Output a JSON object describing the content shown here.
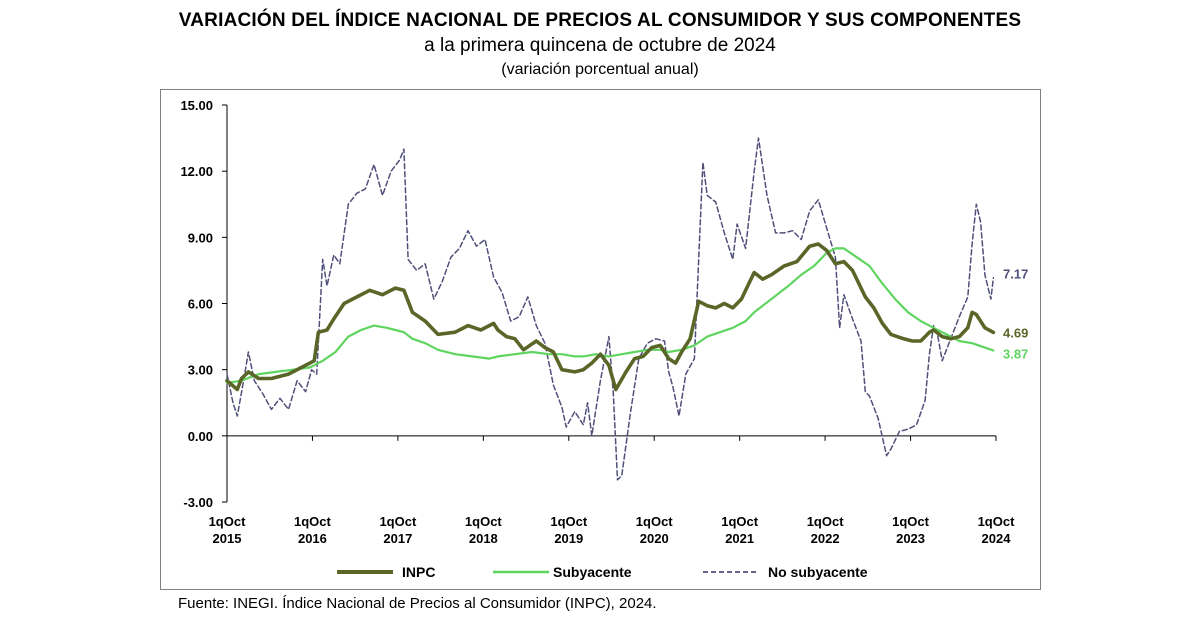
{
  "header": {
    "title": "VARIACIÓN DEL ÍNDICE NACIONAL DE PRECIOS AL CONSUMIDOR Y SUS COMPONENTES",
    "subtitle": "a la primera quincena de octubre de 2024",
    "unit_note": "(variación porcentual anual)"
  },
  "footer": {
    "source": "Fuente: INEGI. Índice Nacional de Precios al Consumidor (INPC), 2024."
  },
  "colors": {
    "inpc": "#5a6628",
    "subyacente": "#5fd45f",
    "no_subyacente": "#50507a",
    "axis": "#000000"
  },
  "chart_data": {
    "type": "line",
    "ylim": [
      -3,
      15
    ],
    "yticks": [
      -3,
      0,
      3,
      6,
      9,
      12,
      15
    ],
    "ytick_labels": [
      "-3.00",
      "0.00",
      "3.00",
      "6.00",
      "9.00",
      "12.00",
      "15.00"
    ],
    "xlim": [
      2015.83,
      2024.83
    ],
    "xticks": [
      {
        "x": 2015.83,
        "line1": "1qOct",
        "line2": "2015"
      },
      {
        "x": 2016.83,
        "line1": "1qOct",
        "line2": "2016"
      },
      {
        "x": 2017.83,
        "line1": "1qOct",
        "line2": "2017"
      },
      {
        "x": 2018.83,
        "line1": "1qOct",
        "line2": "2018"
      },
      {
        "x": 2019.83,
        "line1": "1qOct",
        "line2": "2019"
      },
      {
        "x": 2020.83,
        "line1": "1qOct",
        "line2": "2020"
      },
      {
        "x": 2021.83,
        "line1": "1qOct",
        "line2": "2021"
      },
      {
        "x": 2022.83,
        "line1": "1qOct",
        "line2": "2022"
      },
      {
        "x": 2023.83,
        "line1": "1qOct",
        "line2": "2023"
      },
      {
        "x": 2024.83,
        "line1": "1qOct",
        "line2": "2024"
      }
    ],
    "grid": false,
    "legend": "bottom",
    "series": [
      {
        "name": "INPC",
        "style": "solid-thick",
        "end_label": "4.69",
        "points": [
          [
            2015.83,
            2.5
          ],
          [
            2015.95,
            2.1
          ],
          [
            2016.0,
            2.6
          ],
          [
            2016.08,
            2.9
          ],
          [
            2016.2,
            2.6
          ],
          [
            2016.35,
            2.6
          ],
          [
            2016.55,
            2.8
          ],
          [
            2016.7,
            3.1
          ],
          [
            2016.85,
            3.4
          ],
          [
            2016.9,
            4.7
          ],
          [
            2017.0,
            4.8
          ],
          [
            2017.08,
            5.3
          ],
          [
            2017.2,
            6.0
          ],
          [
            2017.35,
            6.3
          ],
          [
            2017.5,
            6.6
          ],
          [
            2017.65,
            6.4
          ],
          [
            2017.8,
            6.7
          ],
          [
            2017.9,
            6.6
          ],
          [
            2018.0,
            5.6
          ],
          [
            2018.15,
            5.2
          ],
          [
            2018.3,
            4.6
          ],
          [
            2018.5,
            4.7
          ],
          [
            2018.65,
            5.0
          ],
          [
            2018.8,
            4.8
          ],
          [
            2018.95,
            5.1
          ],
          [
            2019.0,
            4.8
          ],
          [
            2019.1,
            4.5
          ],
          [
            2019.2,
            4.4
          ],
          [
            2019.3,
            3.9
          ],
          [
            2019.45,
            4.3
          ],
          [
            2019.55,
            4.0
          ],
          [
            2019.65,
            3.8
          ],
          [
            2019.75,
            3.0
          ],
          [
            2019.9,
            2.9
          ],
          [
            2020.0,
            3.0
          ],
          [
            2020.1,
            3.3
          ],
          [
            2020.2,
            3.7
          ],
          [
            2020.3,
            3.2
          ],
          [
            2020.38,
            2.1
          ],
          [
            2020.5,
            2.9
          ],
          [
            2020.6,
            3.5
          ],
          [
            2020.7,
            3.6
          ],
          [
            2020.8,
            4.0
          ],
          [
            2020.9,
            4.1
          ],
          [
            2021.0,
            3.5
          ],
          [
            2021.08,
            3.3
          ],
          [
            2021.15,
            3.8
          ],
          [
            2021.25,
            4.4
          ],
          [
            2021.35,
            6.1
          ],
          [
            2021.45,
            5.9
          ],
          [
            2021.55,
            5.8
          ],
          [
            2021.65,
            6.0
          ],
          [
            2021.75,
            5.8
          ],
          [
            2021.85,
            6.2
          ],
          [
            2021.95,
            7.0
          ],
          [
            2022.0,
            7.4
          ],
          [
            2022.1,
            7.1
          ],
          [
            2022.2,
            7.3
          ],
          [
            2022.35,
            7.7
          ],
          [
            2022.5,
            7.9
          ],
          [
            2022.65,
            8.6
          ],
          [
            2022.75,
            8.7
          ],
          [
            2022.85,
            8.4
          ],
          [
            2022.95,
            7.8
          ],
          [
            2023.05,
            7.9
          ],
          [
            2023.15,
            7.5
          ],
          [
            2023.3,
            6.3
          ],
          [
            2023.4,
            5.8
          ],
          [
            2023.5,
            5.1
          ],
          [
            2023.6,
            4.6
          ],
          [
            2023.75,
            4.4
          ],
          [
            2023.85,
            4.3
          ],
          [
            2023.95,
            4.3
          ],
          [
            2024.05,
            4.7
          ],
          [
            2024.1,
            4.8
          ],
          [
            2024.2,
            4.5
          ],
          [
            2024.3,
            4.4
          ],
          [
            2024.4,
            4.5
          ],
          [
            2024.5,
            4.9
          ],
          [
            2024.55,
            5.6
          ],
          [
            2024.6,
            5.5
          ],
          [
            2024.7,
            4.9
          ],
          [
            2024.8,
            4.69
          ]
        ]
      },
      {
        "name": "Subyacente",
        "style": "solid",
        "end_label": "3.87",
        "points": [
          [
            2015.83,
            2.4
          ],
          [
            2016.0,
            2.5
          ],
          [
            2016.2,
            2.8
          ],
          [
            2016.4,
            2.9
          ],
          [
            2016.6,
            3.0
          ],
          [
            2016.8,
            3.1
          ],
          [
            2016.95,
            3.4
          ],
          [
            2017.1,
            3.8
          ],
          [
            2017.25,
            4.5
          ],
          [
            2017.4,
            4.8
          ],
          [
            2017.55,
            5.0
          ],
          [
            2017.7,
            4.9
          ],
          [
            2017.8,
            4.8
          ],
          [
            2017.9,
            4.7
          ],
          [
            2018.0,
            4.4
          ],
          [
            2018.15,
            4.2
          ],
          [
            2018.3,
            3.9
          ],
          [
            2018.5,
            3.7
          ],
          [
            2018.7,
            3.6
          ],
          [
            2018.9,
            3.5
          ],
          [
            2019.0,
            3.6
          ],
          [
            2019.2,
            3.7
          ],
          [
            2019.4,
            3.8
          ],
          [
            2019.6,
            3.7
          ],
          [
            2019.75,
            3.7
          ],
          [
            2019.9,
            3.6
          ],
          [
            2020.0,
            3.6
          ],
          [
            2020.15,
            3.7
          ],
          [
            2020.3,
            3.6
          ],
          [
            2020.45,
            3.7
          ],
          [
            2020.6,
            3.8
          ],
          [
            2020.75,
            3.9
          ],
          [
            2020.9,
            3.9
          ],
          [
            2021.0,
            3.8
          ],
          [
            2021.15,
            3.9
          ],
          [
            2021.3,
            4.1
          ],
          [
            2021.45,
            4.5
          ],
          [
            2021.6,
            4.7
          ],
          [
            2021.75,
            4.9
          ],
          [
            2021.9,
            5.2
          ],
          [
            2022.0,
            5.6
          ],
          [
            2022.2,
            6.2
          ],
          [
            2022.4,
            6.8
          ],
          [
            2022.55,
            7.3
          ],
          [
            2022.7,
            7.7
          ],
          [
            2022.85,
            8.3
          ],
          [
            2022.95,
            8.5
          ],
          [
            2023.05,
            8.5
          ],
          [
            2023.2,
            8.1
          ],
          [
            2023.35,
            7.7
          ],
          [
            2023.5,
            6.9
          ],
          [
            2023.65,
            6.2
          ],
          [
            2023.8,
            5.6
          ],
          [
            2023.95,
            5.2
          ],
          [
            2024.1,
            4.9
          ],
          [
            2024.25,
            4.6
          ],
          [
            2024.4,
            4.3
          ],
          [
            2024.55,
            4.2
          ],
          [
            2024.7,
            4.0
          ],
          [
            2024.8,
            3.87
          ]
        ]
      },
      {
        "name": "No subyacente",
        "style": "dashed",
        "end_label": "7.17",
        "points": [
          [
            2015.83,
            2.8
          ],
          [
            2015.9,
            1.5
          ],
          [
            2015.95,
            0.9
          ],
          [
            2016.02,
            2.4
          ],
          [
            2016.08,
            3.8
          ],
          [
            2016.15,
            2.5
          ],
          [
            2016.25,
            1.9
          ],
          [
            2016.35,
            1.2
          ],
          [
            2016.45,
            1.7
          ],
          [
            2016.55,
            1.2
          ],
          [
            2016.65,
            2.5
          ],
          [
            2016.75,
            2.0
          ],
          [
            2016.82,
            3.0
          ],
          [
            2016.88,
            2.8
          ],
          [
            2016.95,
            8.0
          ],
          [
            2017.0,
            6.8
          ],
          [
            2017.08,
            8.2
          ],
          [
            2017.15,
            7.8
          ],
          [
            2017.25,
            10.5
          ],
          [
            2017.35,
            11.0
          ],
          [
            2017.45,
            11.2
          ],
          [
            2017.55,
            12.3
          ],
          [
            2017.65,
            10.9
          ],
          [
            2017.75,
            12.0
          ],
          [
            2017.85,
            12.5
          ],
          [
            2017.9,
            13.0
          ],
          [
            2017.95,
            8.0
          ],
          [
            2018.05,
            7.5
          ],
          [
            2018.15,
            7.8
          ],
          [
            2018.25,
            6.2
          ],
          [
            2018.35,
            7.0
          ],
          [
            2018.45,
            8.1
          ],
          [
            2018.55,
            8.5
          ],
          [
            2018.65,
            9.3
          ],
          [
            2018.75,
            8.6
          ],
          [
            2018.85,
            8.9
          ],
          [
            2018.95,
            7.2
          ],
          [
            2019.05,
            6.5
          ],
          [
            2019.15,
            5.2
          ],
          [
            2019.25,
            5.4
          ],
          [
            2019.35,
            6.3
          ],
          [
            2019.45,
            5.0
          ],
          [
            2019.55,
            4.2
          ],
          [
            2019.65,
            2.3
          ],
          [
            2019.75,
            1.3
          ],
          [
            2019.8,
            0.4
          ],
          [
            2019.9,
            1.1
          ],
          [
            2020.0,
            0.5
          ],
          [
            2020.05,
            1.5
          ],
          [
            2020.1,
            0.0
          ],
          [
            2020.2,
            2.5
          ],
          [
            2020.3,
            4.5
          ],
          [
            2020.35,
            2.0
          ],
          [
            2020.4,
            -2.0
          ],
          [
            2020.45,
            -1.8
          ],
          [
            2020.55,
            1.0
          ],
          [
            2020.65,
            3.5
          ],
          [
            2020.75,
            4.2
          ],
          [
            2020.85,
            4.4
          ],
          [
            2020.95,
            4.3
          ],
          [
            2021.0,
            2.9
          ],
          [
            2021.05,
            2.2
          ],
          [
            2021.12,
            0.9
          ],
          [
            2021.2,
            2.8
          ],
          [
            2021.3,
            3.5
          ],
          [
            2021.4,
            12.4
          ],
          [
            2021.45,
            10.9
          ],
          [
            2021.55,
            10.6
          ],
          [
            2021.65,
            9.2
          ],
          [
            2021.75,
            8.0
          ],
          [
            2021.8,
            9.6
          ],
          [
            2021.9,
            8.5
          ],
          [
            2022.0,
            12.0
          ],
          [
            2022.05,
            13.5
          ],
          [
            2022.15,
            10.9
          ],
          [
            2022.25,
            9.2
          ],
          [
            2022.35,
            9.2
          ],
          [
            2022.45,
            9.3
          ],
          [
            2022.55,
            8.9
          ],
          [
            2022.65,
            10.2
          ],
          [
            2022.75,
            10.7
          ],
          [
            2022.85,
            9.4
          ],
          [
            2022.95,
            8.1
          ],
          [
            2023.0,
            4.9
          ],
          [
            2023.05,
            6.4
          ],
          [
            2023.15,
            5.3
          ],
          [
            2023.25,
            4.3
          ],
          [
            2023.3,
            2.0
          ],
          [
            2023.35,
            1.8
          ],
          [
            2023.45,
            0.8
          ],
          [
            2023.55,
            -0.9
          ],
          [
            2023.6,
            -0.6
          ],
          [
            2023.7,
            0.2
          ],
          [
            2023.8,
            0.3
          ],
          [
            2023.9,
            0.5
          ],
          [
            2024.0,
            1.6
          ],
          [
            2024.05,
            3.7
          ],
          [
            2024.1,
            5.0
          ],
          [
            2024.15,
            4.5
          ],
          [
            2024.2,
            3.4
          ],
          [
            2024.3,
            4.4
          ],
          [
            2024.4,
            5.4
          ],
          [
            2024.5,
            6.3
          ],
          [
            2024.55,
            8.7
          ],
          [
            2024.6,
            10.5
          ],
          [
            2024.65,
            9.7
          ],
          [
            2024.7,
            7.3
          ],
          [
            2024.77,
            6.2
          ],
          [
            2024.8,
            7.17
          ]
        ]
      }
    ]
  }
}
